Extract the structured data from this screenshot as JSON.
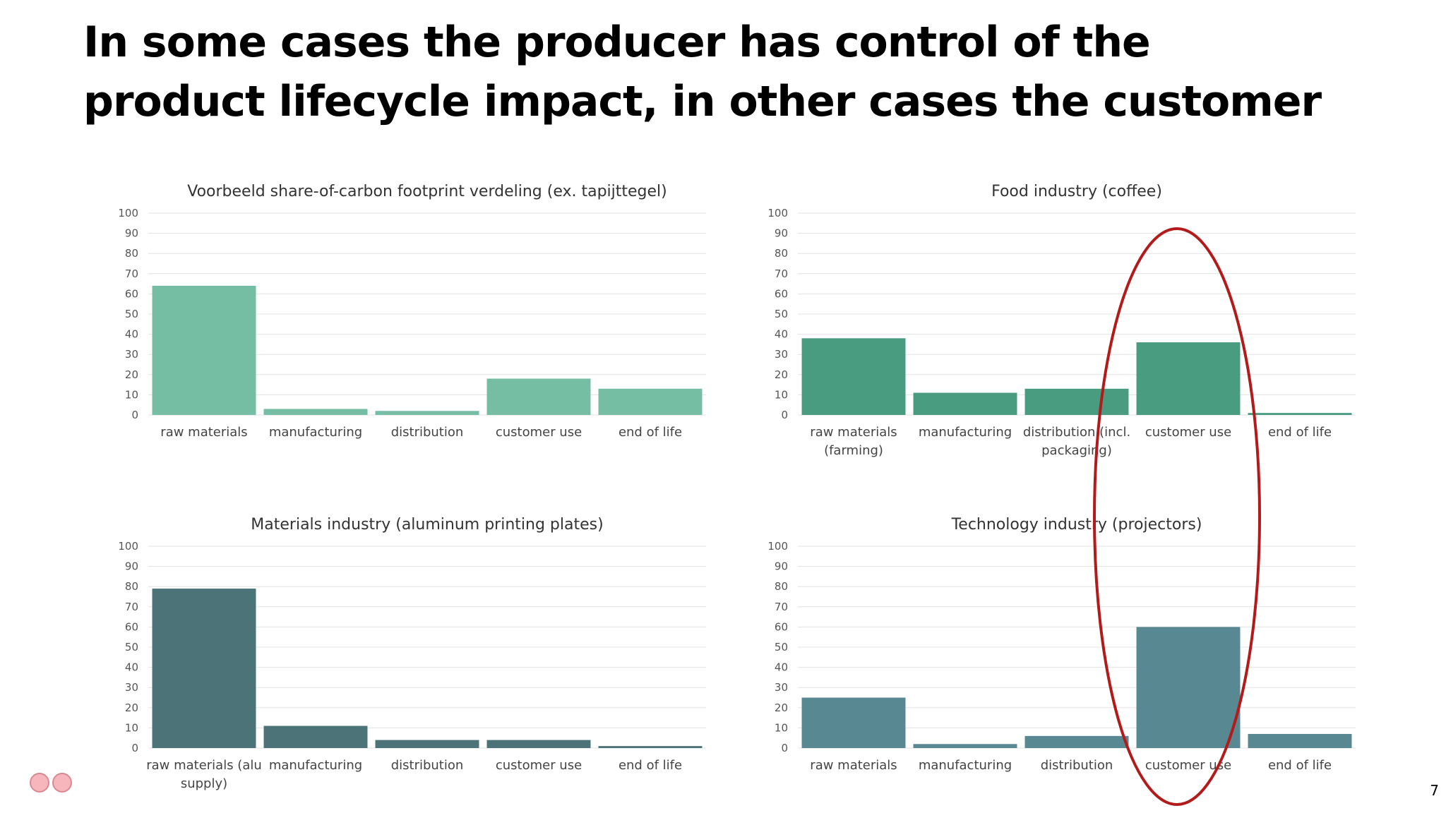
{
  "slide": {
    "title": "In some cases the producer has control of the product lifecycle impact, in other cases the customer",
    "page_number": "7"
  },
  "colors": {
    "chart1": "#76bea3",
    "chart2": "#4a9c80",
    "chart3": "#4b7378",
    "chart4": "#588892",
    "highlight": "#b31b1b",
    "gridline": "#e3e3e3"
  },
  "chart_data": [
    {
      "type": "bar",
      "title": "Voorbeeld share-of-carbon footprint verdeling (ex. tapijttegel)",
      "categories": [
        [
          "raw materials"
        ],
        [
          "manufacturing"
        ],
        [
          "distribution"
        ],
        [
          "customer use"
        ],
        [
          "end of life"
        ]
      ],
      "values": [
        64,
        3,
        2,
        18,
        13
      ],
      "ylim": [
        0,
        100
      ],
      "yticks": [
        0,
        10,
        20,
        30,
        40,
        50,
        60,
        70,
        80,
        90,
        100
      ],
      "grid": true
    },
    {
      "type": "bar",
      "title": "Food industry (coffee)",
      "categories": [
        [
          "raw materials",
          "(farming)"
        ],
        [
          "manufacturing"
        ],
        [
          "distribution (incl.",
          "packaging)"
        ],
        [
          "customer use"
        ],
        [
          "end of life"
        ]
      ],
      "values": [
        38,
        11,
        13,
        36,
        1
      ],
      "ylim": [
        0,
        100
      ],
      "yticks": [
        0,
        10,
        20,
        30,
        40,
        50,
        60,
        70,
        80,
        90,
        100
      ],
      "grid": true
    },
    {
      "type": "bar",
      "title": "Materials industry (aluminum printing plates)",
      "categories": [
        [
          "raw materials (alu",
          "supply)"
        ],
        [
          "manufacturing"
        ],
        [
          "distribution"
        ],
        [
          "customer use"
        ],
        [
          "end of life"
        ]
      ],
      "values": [
        79,
        11,
        4,
        4,
        1
      ],
      "ylim": [
        0,
        100
      ],
      "yticks": [
        0,
        10,
        20,
        30,
        40,
        50,
        60,
        70,
        80,
        90,
        100
      ],
      "grid": true
    },
    {
      "type": "bar",
      "title": "Technology industry (projectors)",
      "categories": [
        [
          "raw materials"
        ],
        [
          "manufacturing"
        ],
        [
          "distribution"
        ],
        [
          "customer use"
        ],
        [
          "end of life"
        ]
      ],
      "values": [
        25,
        2,
        6,
        60,
        7
      ],
      "ylim": [
        0,
        100
      ],
      "yticks": [
        0,
        10,
        20,
        30,
        40,
        50,
        60,
        70,
        80,
        90,
        100
      ],
      "grid": true
    }
  ]
}
